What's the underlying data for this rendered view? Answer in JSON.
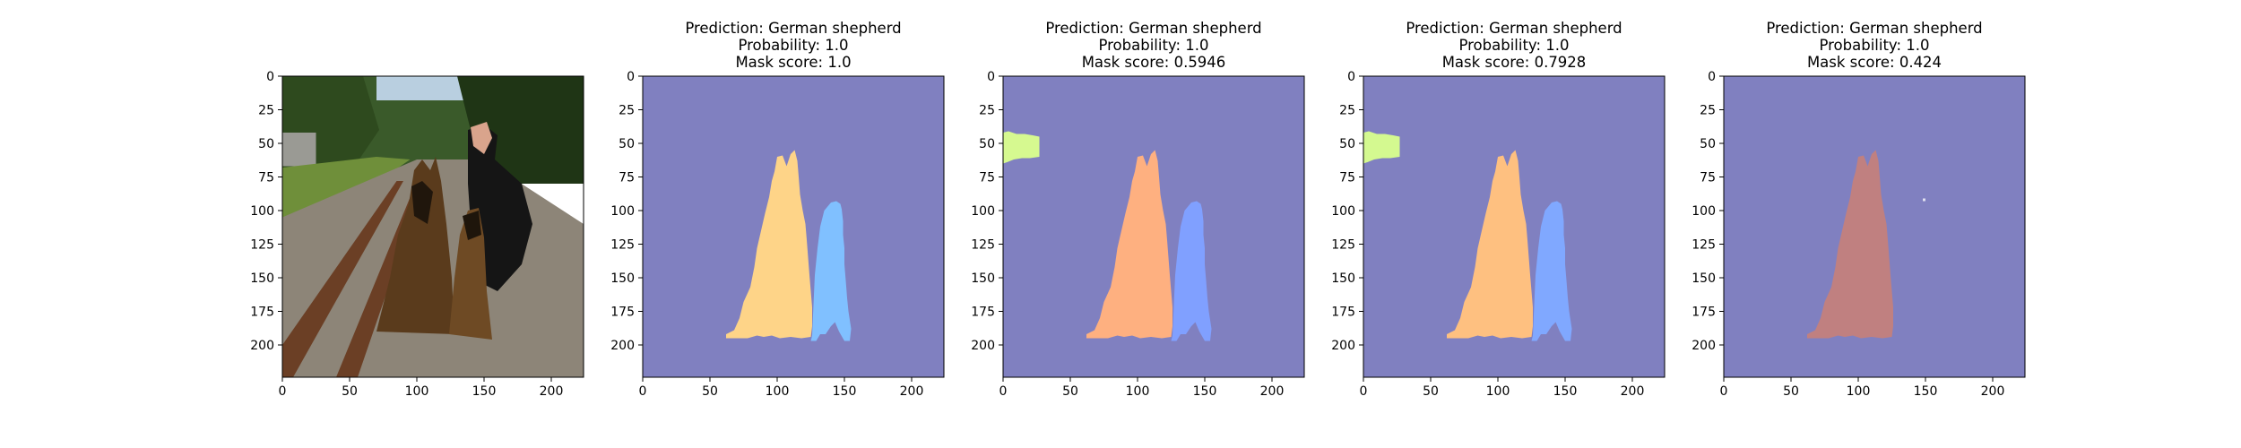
{
  "chart_data": [
    {
      "type": "image",
      "content": "photo",
      "title_lines": [],
      "xlim": [
        0,
        224
      ],
      "ylim": [
        224,
        0
      ],
      "xticks": [
        0,
        50,
        100,
        150,
        200
      ],
      "yticks": [
        0,
        25,
        50,
        75,
        100,
        125,
        150,
        175,
        200
      ]
    },
    {
      "type": "image",
      "content": "segmentation-mask",
      "title_lines": [
        "Prediction: German shepherd",
        "Probability: 1.0",
        "Mask score: 1.0"
      ],
      "xlim": [
        0,
        224
      ],
      "ylim": [
        224,
        0
      ],
      "xticks": [
        0,
        50,
        100,
        150,
        200
      ],
      "yticks": [
        0,
        25,
        50,
        75,
        100,
        125,
        150,
        175,
        200
      ],
      "background_color": "#8080c0",
      "regions": [
        {
          "shape": "dog-left",
          "color": "#fed488"
        },
        {
          "shape": "dog-right",
          "color": "#80c0ff"
        }
      ]
    },
    {
      "type": "image",
      "content": "segmentation-mask",
      "title_lines": [
        "Prediction: German shepherd",
        "Probability: 1.0",
        "Mask score: 0.5946"
      ],
      "xlim": [
        0,
        224
      ],
      "ylim": [
        224,
        0
      ],
      "xticks": [
        0,
        50,
        100,
        150,
        200
      ],
      "yticks": [
        0,
        25,
        50,
        75,
        100,
        125,
        150,
        175,
        200
      ],
      "background_color": "#8080c0",
      "regions": [
        {
          "shape": "patch",
          "color": "#d6f990"
        },
        {
          "shape": "dog-left",
          "color": "#feb080"
        },
        {
          "shape": "dog-right",
          "color": "#80a0ff"
        }
      ]
    },
    {
      "type": "image",
      "content": "segmentation-mask",
      "title_lines": [
        "Prediction: German shepherd",
        "Probability: 1.0",
        "Mask score: 0.7928"
      ],
      "xlim": [
        0,
        224
      ],
      "ylim": [
        224,
        0
      ],
      "xticks": [
        0,
        50,
        100,
        150,
        200
      ],
      "yticks": [
        0,
        25,
        50,
        75,
        100,
        125,
        150,
        175,
        200
      ],
      "background_color": "#8080c0",
      "regions": [
        {
          "shape": "patch",
          "color": "#d4f990"
        },
        {
          "shape": "dog-left",
          "color": "#fec080"
        },
        {
          "shape": "dog-right",
          "color": "#80a8ff"
        }
      ]
    },
    {
      "type": "image",
      "content": "segmentation-mask",
      "title_lines": [
        "Prediction: German shepherd",
        "Probability: 1.0",
        "Mask score: 0.424"
      ],
      "xlim": [
        0,
        224
      ],
      "ylim": [
        224,
        0
      ],
      "xticks": [
        0,
        50,
        100,
        150,
        200
      ],
      "yticks": [
        0,
        25,
        50,
        75,
        100,
        125,
        150,
        175,
        200
      ],
      "background_color": "#8080c0",
      "regions": [
        {
          "shape": "dog-left",
          "color": "#c08080"
        },
        {
          "shape": "speck",
          "color": "#e0e0f0"
        }
      ]
    }
  ]
}
